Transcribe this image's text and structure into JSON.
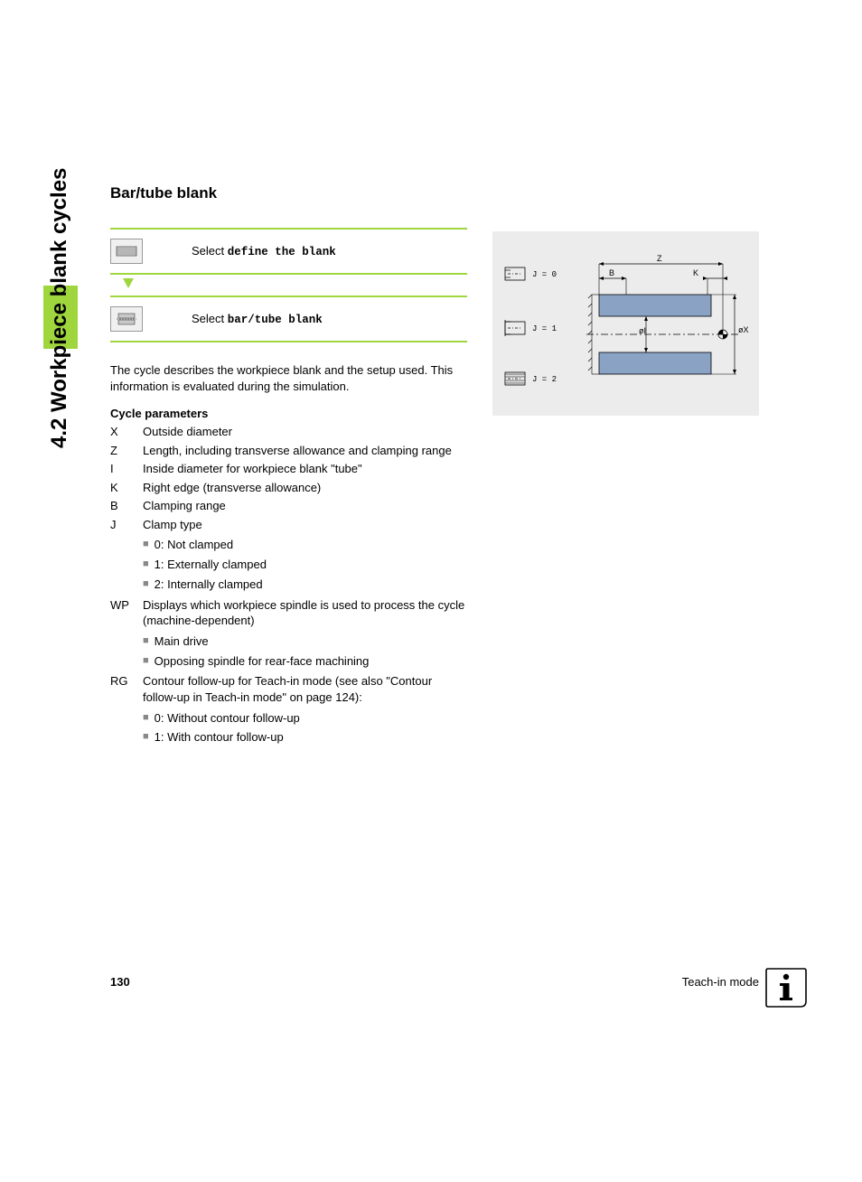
{
  "sideTab": {
    "label": "4.2 Workpiece blank cycles"
  },
  "heading": "Bar/tube blank",
  "steps": [
    {
      "prefix": "Select ",
      "bold": "define the blank"
    },
    {
      "prefix": "Select ",
      "bold": "bar/tube blank"
    }
  ],
  "bodyText": "The cycle describes the workpiece blank and the setup used. This information is evaluated during the simulation.",
  "paramsHeading": "Cycle parameters",
  "params": [
    {
      "key": "X",
      "desc": "Outside diameter"
    },
    {
      "key": "Z",
      "desc": "Length, including transverse allowance and clamping range"
    },
    {
      "key": "I",
      "desc": "Inside diameter for workpiece blank \"tube\""
    },
    {
      "key": "K",
      "desc": "Right edge (transverse allowance)"
    },
    {
      "key": "B",
      "desc": "Clamping range"
    },
    {
      "key": "J",
      "desc": "Clamp type",
      "sub": [
        "0: Not clamped",
        "1: Externally clamped",
        "2: Internally clamped"
      ]
    },
    {
      "key": "WP",
      "desc": "Displays which workpiece spindle is used to process the cycle (machine-dependent)",
      "sub": [
        "Main drive",
        "Opposing spindle for rear-face machining"
      ]
    },
    {
      "key": "RG",
      "desc": "Contour follow-up for Teach-in mode (see also \"Contour follow-up in Teach-in mode\" on page 124):",
      "sub": [
        "0: Without contour follow-up",
        "1: With contour follow-up"
      ]
    }
  ],
  "diagram": {
    "legend": [
      {
        "label": "J = 0"
      },
      {
        "label": "J = 1"
      },
      {
        "label": "J = 2"
      }
    ],
    "labels": {
      "Z": "Z",
      "B": "B",
      "K": "K",
      "phiI": "øI",
      "phiX": "øX"
    },
    "colors": {
      "bg": "#ececec",
      "bar_fill": "#8aa3c4",
      "bar_stroke": "#000000",
      "dash": "#000000",
      "text": "#000000"
    }
  },
  "footer": {
    "pageNum": "130",
    "mode": "Teach-in mode"
  }
}
